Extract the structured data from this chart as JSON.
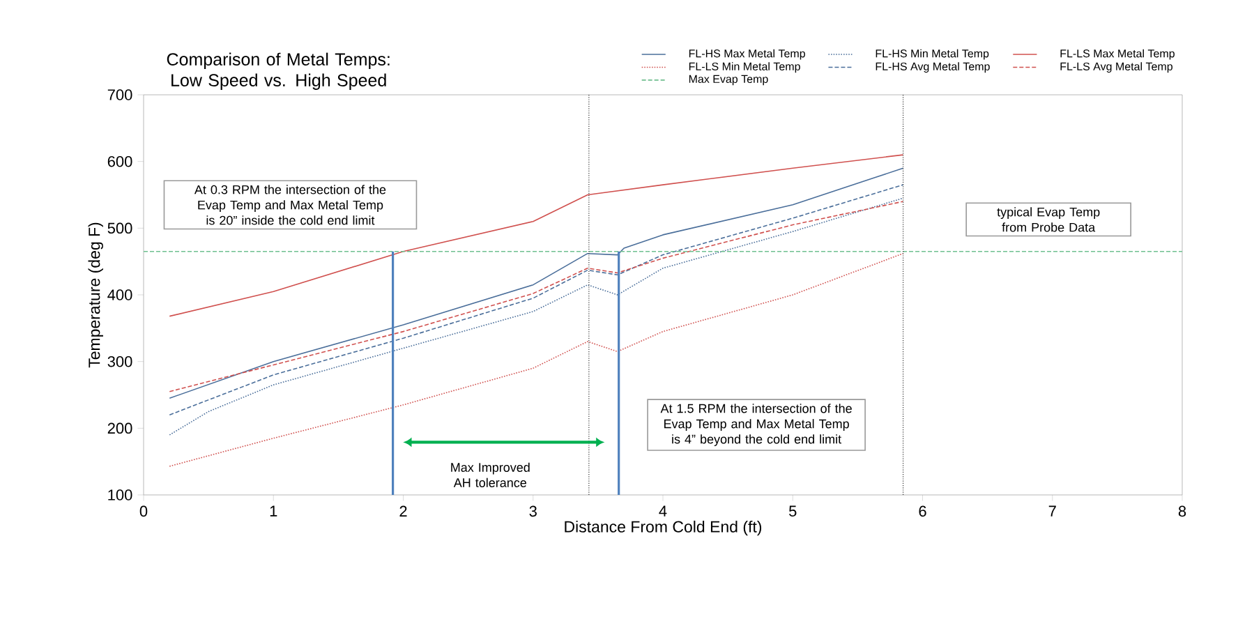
{
  "chart_data": {
    "type": "line",
    "title": "Comparison of Metal Temps: Low Speed vs. High Speed",
    "xlabel": "Distance From Cold End (ft)",
    "ylabel": "Temperature (deg F)",
    "xlim": [
      0,
      8
    ],
    "xticks": [
      0,
      1,
      2,
      3,
      4,
      5,
      6,
      7,
      8
    ],
    "ylim": [
      100,
      700
    ],
    "yticks": [
      100,
      200,
      300,
      400,
      500,
      600,
      700
    ],
    "grid": false,
    "legend": "top right",
    "marker": "none",
    "series": [
      {
        "name": "FL-HS Max Metal Temp",
        "color": "#4a6e9a",
        "line_style": "solid",
        "x": [
          0.2,
          1,
          2,
          3,
          3.42,
          3.65,
          3.7,
          4,
          5,
          5.85
        ],
        "values": [
          245,
          300,
          355,
          415,
          462,
          460,
          470,
          490,
          535,
          590
        ]
      },
      {
        "name": "FL-HS Min Metal Temp",
        "color": "#4a6e9a",
        "line_style": "dotted",
        "x": [
          0.2,
          0.5,
          1,
          2,
          3,
          3.42,
          3.65,
          4,
          5,
          5.85
        ],
        "values": [
          190,
          225,
          265,
          320,
          375,
          415,
          400,
          440,
          495,
          545
        ]
      },
      {
        "name": "FL-LS Max Metal Temp",
        "color": "#d0504e",
        "line_style": "solid",
        "x": [
          0.2,
          1,
          2,
          3,
          3.42,
          3.5,
          4,
          5,
          5.85
        ],
        "values": [
          368,
          405,
          465,
          510,
          550,
          552,
          565,
          590,
          610
        ]
      },
      {
        "name": "FL-LS Min Metal Temp",
        "color": "#d0504e",
        "line_style": "dotted",
        "x": [
          0.2,
          1,
          2,
          3,
          3.42,
          3.65,
          4,
          5,
          5.85
        ],
        "values": [
          143,
          185,
          235,
          290,
          330,
          315,
          345,
          400,
          462
        ]
      },
      {
        "name": "FL-HS Avg Metal Temp",
        "color": "#4a6e9a",
        "line_style": "dashed",
        "x": [
          0.2,
          1,
          2,
          3,
          3.42,
          3.65,
          4,
          5,
          5.85
        ],
        "values": [
          220,
          280,
          335,
          395,
          437,
          430,
          460,
          515,
          565
        ]
      },
      {
        "name": "FL-LS Avg Metal Temp",
        "color": "#d0504e",
        "line_style": "dashed",
        "x": [
          0.2,
          1,
          2,
          3,
          3.42,
          3.65,
          4,
          5,
          5.85
        ],
        "values": [
          255,
          295,
          345,
          402,
          440,
          433,
          455,
          505,
          540
        ]
      },
      {
        "name": "Max Evap Temp",
        "color": "#6fbf8f",
        "line_style": "dashed",
        "x": [
          0,
          8
        ],
        "values": [
          465,
          465
        ]
      },
      {
        "color": "#4f81bd",
        "line_style": "solid",
        "x": [
          1.92,
          1.92
        ],
        "values": [
          100,
          465
        ]
      },
      {
        "color": "#4f81bd",
        "line_style": "solid",
        "x": [
          3.66,
          3.66
        ],
        "values": [
          100,
          465
        ]
      }
    ],
    "ref_lines": [
      {
        "axis": "x",
        "value": 3.43,
        "color": "#333333",
        "line_style": "dotted"
      },
      {
        "axis": "x",
        "value": 5.85,
        "color": "#333333",
        "line_style": "dotted"
      }
    ],
    "annotations": [
      "At 0.3 RPM the intersection of the Evap Temp and Max Metal Temp is 20” inside the cold end limit",
      "At 1.5 RPM the intersection of the Evap Temp and Max Metal Temp is 4” beyond the cold end limit",
      "typical Evap Temp from Probe Data",
      "Max Improved AH tolerance"
    ]
  }
}
